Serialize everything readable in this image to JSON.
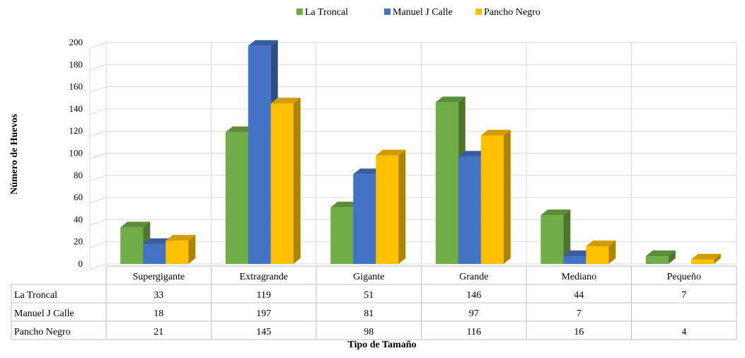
{
  "chart_data": {
    "type": "bar",
    "xlabel": "Tipo de Tamaño",
    "ylabel": "Número de Huevos",
    "ylim": [
      0,
      200
    ],
    "yticks": [
      0,
      20,
      40,
      60,
      80,
      100,
      120,
      140,
      160,
      180,
      200
    ],
    "grid": true,
    "legend_position": "top",
    "categories": [
      "Supergigante",
      "Extragrande",
      "Gigante",
      "Grande",
      "Mediano",
      "Pequeño"
    ],
    "series": [
      {
        "name": "La Troncal",
        "color": "#70AD47",
        "values": [
          33,
          119,
          51,
          146,
          44,
          7
        ],
        "table_values": [
          "33",
          "119",
          "51",
          "146",
          "44",
          "7"
        ]
      },
      {
        "name": "Manuel J Calle",
        "color": "#4472C4",
        "values": [
          18,
          197,
          81,
          97,
          7,
          0
        ],
        "table_values": [
          "18",
          "197",
          "81",
          "97",
          "7",
          ""
        ]
      },
      {
        "name": "Pancho Negro",
        "color": "#FFC000",
        "values": [
          21,
          145,
          98,
          116,
          16,
          4
        ],
        "table_values": [
          "21",
          "145",
          "98",
          "116",
          "16",
          "4"
        ]
      }
    ]
  }
}
